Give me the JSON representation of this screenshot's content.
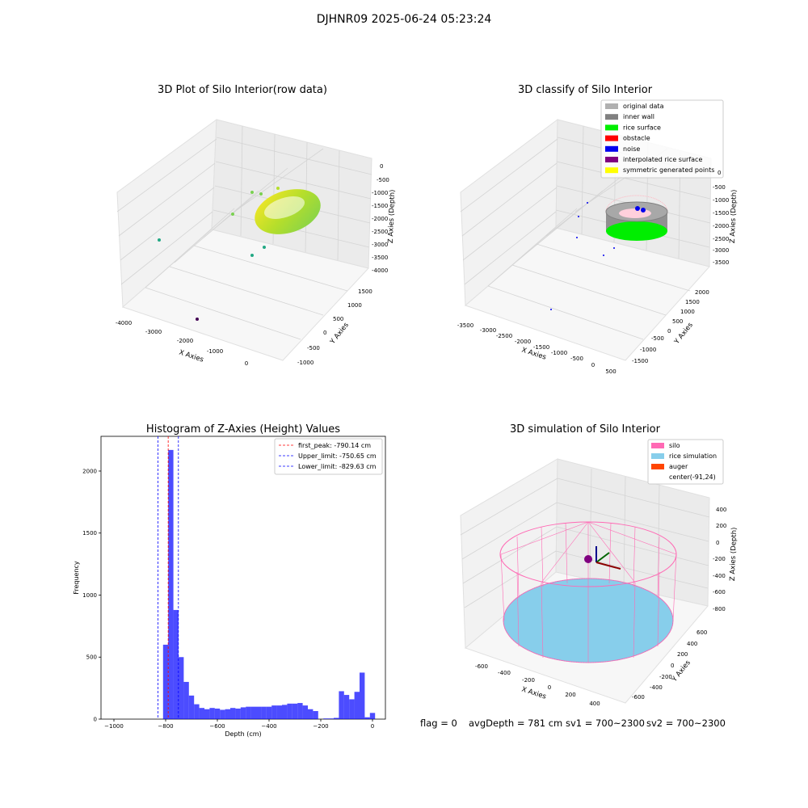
{
  "suptitle": "DJHNR09 2025-06-24 05:23:24",
  "status": {
    "flag": "flag = 0",
    "avg_depth": "avgDepth = 781 cm",
    "sv1": "sv1 = 700~2300",
    "sv2": "sv2 = 700~2300"
  },
  "chart_data": [
    {
      "type": "scatter",
      "title": "3D Plot of Silo Interior(row data)",
      "xlabel": "X Axies",
      "ylabel": "Y Axies",
      "zlabel": "Z Axies (Depth)",
      "x_ticks": [
        "-4000",
        "-3000",
        "-2000",
        "-1000",
        "0"
      ],
      "y_ticks": [
        "-1000",
        "-500",
        "0",
        "500",
        "1000",
        "1500"
      ],
      "z_ticks": [
        "0",
        "-500",
        "-1000",
        "-1500",
        "-2000",
        "-2500",
        "-3000",
        "-3500",
        "-4000"
      ],
      "colors": {
        "high": "#fde725",
        "mid": "#7ad151",
        "low": "#22a884",
        "outlier": "#440154"
      }
    },
    {
      "type": "scatter",
      "title": "3D classify of Silo Interior",
      "xlabel": "X Axies",
      "ylabel": "Y Axies",
      "zlabel": "Z Axies (Depth)",
      "x_ticks": [
        "-3500",
        "-3000",
        "-2500",
        "-2000",
        "-1500",
        "-1000",
        "-500",
        "0",
        "500"
      ],
      "y_ticks": [
        "-1500",
        "-1000",
        "-500",
        "0",
        "500",
        "1000",
        "1500",
        "2000"
      ],
      "z_ticks": [
        "0",
        "-500",
        "-1000",
        "-1500",
        "-2000",
        "-2500",
        "-3000",
        "-3500"
      ],
      "legend": [
        {
          "label": "original data",
          "color": "#b0b0b0"
        },
        {
          "label": "inner wall",
          "color": "#808080"
        },
        {
          "label": "rice surface",
          "color": "#00ee00"
        },
        {
          "label": "obstacle",
          "color": "#ff0000"
        },
        {
          "label": "noise",
          "color": "#0000ee"
        },
        {
          "label": "interpolated rice surface",
          "color": "#800080"
        },
        {
          "label": "symmetric generated points",
          "color": "#ffff00"
        }
      ]
    },
    {
      "type": "bar",
      "title": "Histogram of Z-Axies (Height) Values",
      "xlabel": "Depth (cm)",
      "ylabel": "Frequency",
      "xlim": [
        -1050,
        50
      ],
      "ylim": [
        0,
        2280
      ],
      "x_ticks": [
        -1000,
        -800,
        -600,
        -400,
        -200,
        0
      ],
      "y_ticks": [
        0,
        500,
        1000,
        1500,
        2000
      ],
      "bin_width": 20,
      "bins": [
        [
          -810,
          600
        ],
        [
          -790,
          2170
        ],
        [
          -770,
          880
        ],
        [
          -750,
          500
        ],
        [
          -730,
          300
        ],
        [
          -710,
          190
        ],
        [
          -690,
          120
        ],
        [
          -670,
          90
        ],
        [
          -650,
          80
        ],
        [
          -630,
          90
        ],
        [
          -610,
          85
        ],
        [
          -590,
          75
        ],
        [
          -570,
          80
        ],
        [
          -550,
          90
        ],
        [
          -530,
          85
        ],
        [
          -510,
          95
        ],
        [
          -490,
          100
        ],
        [
          -470,
          100
        ],
        [
          -450,
          100
        ],
        [
          -430,
          100
        ],
        [
          -410,
          100
        ],
        [
          -390,
          110
        ],
        [
          -370,
          110
        ],
        [
          -350,
          115
        ],
        [
          -330,
          125
        ],
        [
          -310,
          125
        ],
        [
          -290,
          130
        ],
        [
          -270,
          110
        ],
        [
          -250,
          80
        ],
        [
          -230,
          65
        ],
        [
          -210,
          0
        ],
        [
          -190,
          5
        ],
        [
          -170,
          5
        ],
        [
          -150,
          10
        ],
        [
          -130,
          225
        ],
        [
          -110,
          195
        ],
        [
          -90,
          160
        ],
        [
          -70,
          220
        ],
        [
          -50,
          375
        ],
        [
          -30,
          15
        ],
        [
          -10,
          50
        ]
      ],
      "bar_color": "#0000ff",
      "lines": [
        {
          "label": "first_peak: -790.14 cm",
          "value": -790.14,
          "color": "#ff0000"
        },
        {
          "label": "Upper_limit: -750.65 cm",
          "value": -750.65,
          "color": "#0000ff"
        },
        {
          "label": "Lower_limit: -829.63 cm",
          "value": -829.63,
          "color": "#0000ff"
        }
      ]
    },
    {
      "type": "scatter",
      "title": "3D simulation of Silo Interior",
      "xlabel": "X Axies",
      "ylabel": "Y Axies",
      "zlabel": "Z Axies (Depth)",
      "x_ticks": [
        "-600",
        "-400",
        "-200",
        "0",
        "200",
        "400"
      ],
      "y_ticks": [
        "-600",
        "-400",
        "-200",
        "0",
        "200",
        "400",
        "600"
      ],
      "z_ticks": [
        "400",
        "200",
        "0",
        "-200",
        "-400",
        "-600",
        "-800"
      ],
      "legend": [
        {
          "label": "silo",
          "color": "#ff69b4"
        },
        {
          "label": "rice simulation",
          "color": "#87ceeb"
        },
        {
          "label": "auger",
          "color": "#ff4500"
        },
        {
          "label": "center(-91,24)",
          "color": ""
        }
      ]
    }
  ]
}
